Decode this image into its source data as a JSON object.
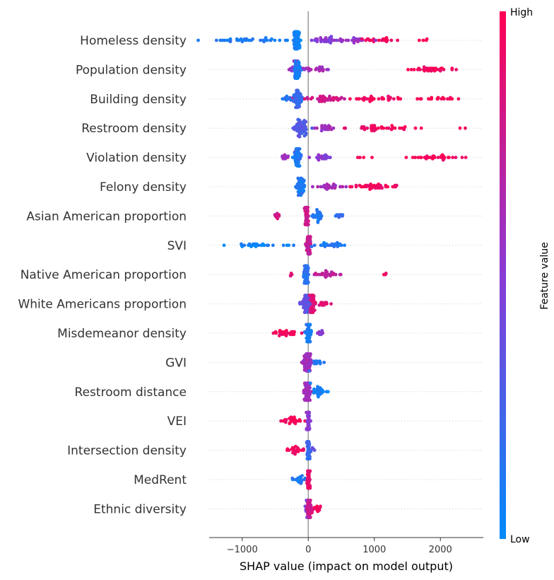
{
  "chart_data": {
    "type": "scatter",
    "subtype": "shap-beeswarm",
    "xlabel": "SHAP value (impact on model output)",
    "xticks": [
      -1000,
      0,
      1000,
      2000
    ],
    "xtick_labels": [
      "−1000",
      "0",
      "1000",
      "2000"
    ],
    "xlim": [
      -1500,
      2650
    ],
    "colorbar": {
      "label": "Feature value",
      "high_label": "High",
      "low_label": "Low",
      "low_color": "#008bfb",
      "high_color": "#ff0052"
    },
    "zero_line": true,
    "grid": false,
    "features": [
      {
        "name": "Homeless density",
        "clusters": [
          {
            "center": -170,
            "spread": 60,
            "n": 70,
            "v": 0.05
          },
          {
            "center": -950,
            "spread": 900,
            "n": 38,
            "v": 0.1
          },
          {
            "center": 230,
            "spread": 230,
            "n": 30,
            "v": 0.5
          },
          {
            "center": 700,
            "spread": 280,
            "n": 22,
            "v": 0.55
          },
          {
            "center": 1100,
            "spread": 370,
            "n": 20,
            "v": 0.96
          },
          {
            "center": 1700,
            "spread": 190,
            "n": 4,
            "v": 1.0
          }
        ]
      },
      {
        "name": "Population density",
        "clusters": [
          {
            "center": -170,
            "spread": 60,
            "n": 70,
            "v": 0.08
          },
          {
            "center": -280,
            "spread": 130,
            "n": 8,
            "v": 0.55
          },
          {
            "center": 160,
            "spread": 220,
            "n": 22,
            "v": 0.6
          },
          {
            "center": 1900,
            "spread": 370,
            "n": 35,
            "v": 0.96
          }
        ]
      },
      {
        "name": "Building density",
        "clusters": [
          {
            "center": -150,
            "spread": 80,
            "n": 50,
            "v": 0.2
          },
          {
            "center": -310,
            "spread": 80,
            "n": 10,
            "v": 0.15
          },
          {
            "center": 250,
            "spread": 320,
            "n": 40,
            "v": 0.8
          },
          {
            "center": 1000,
            "spread": 450,
            "n": 30,
            "v": 0.95
          },
          {
            "center": 1950,
            "spread": 420,
            "n": 18,
            "v": 1.0
          }
        ]
      },
      {
        "name": "Restroom density",
        "clusters": [
          {
            "center": -120,
            "spread": 120,
            "n": 60,
            "v": 0.3
          },
          {
            "center": 250,
            "spread": 180,
            "n": 22,
            "v": 0.6
          },
          {
            "center": 1050,
            "spread": 600,
            "n": 40,
            "v": 0.95
          },
          {
            "center": 2350,
            "spread": 100,
            "n": 2,
            "v": 1.0
          }
        ]
      },
      {
        "name": "Violation density",
        "clusters": [
          {
            "center": -160,
            "spread": 60,
            "n": 60,
            "v": 0.1
          },
          {
            "center": -330,
            "spread": 130,
            "n": 12,
            "v": 0.6
          },
          {
            "center": 200,
            "spread": 200,
            "n": 20,
            "v": 0.5
          },
          {
            "center": 750,
            "spread": 180,
            "n": 4,
            "v": 1.0
          },
          {
            "center": 1900,
            "spread": 400,
            "n": 32,
            "v": 0.96
          }
        ]
      },
      {
        "name": "Felony density",
        "clusters": [
          {
            "center": -130,
            "spread": 80,
            "n": 50,
            "v": 0.1
          },
          {
            "center": 300,
            "spread": 250,
            "n": 25,
            "v": 0.6
          },
          {
            "center": 1000,
            "spread": 450,
            "n": 40,
            "v": 0.95
          }
        ]
      },
      {
        "name": "Asian American proportion",
        "clusters": [
          {
            "center": -20,
            "spread": 40,
            "n": 60,
            "v": 0.8
          },
          {
            "center": -490,
            "spread": 60,
            "n": 10,
            "v": 0.8
          },
          {
            "center": 130,
            "spread": 100,
            "n": 25,
            "v": 0.1
          },
          {
            "center": 480,
            "spread": 80,
            "n": 10,
            "v": 0.2
          }
        ]
      },
      {
        "name": "SVI",
        "clusters": [
          {
            "center": 10,
            "spread": 40,
            "n": 60,
            "v": 0.75
          },
          {
            "center": -800,
            "spread": 550,
            "n": 28,
            "v": 0.05
          },
          {
            "center": 300,
            "spread": 300,
            "n": 25,
            "v": 0.1
          }
        ]
      },
      {
        "name": "Native American proportion",
        "clusters": [
          {
            "center": -30,
            "spread": 40,
            "n": 60,
            "v": 0.15
          },
          {
            "center": -250,
            "spread": 60,
            "n": 4,
            "v": 0.9
          },
          {
            "center": 280,
            "spread": 220,
            "n": 26,
            "v": 0.7
          },
          {
            "center": 1150,
            "spread": 60,
            "n": 3,
            "v": 0.95
          }
        ]
      },
      {
        "name": "White Americans proportion",
        "clusters": [
          {
            "center": -30,
            "spread": 90,
            "n": 60,
            "v": 0.35
          },
          {
            "center": 60,
            "spread": 50,
            "n": 40,
            "v": 0.85
          },
          {
            "center": 250,
            "spread": 120,
            "n": 12,
            "v": 0.9
          }
        ]
      },
      {
        "name": "Misdemeanor density",
        "clusters": [
          {
            "center": 0,
            "spread": 40,
            "n": 60,
            "v": 0.1
          },
          {
            "center": -300,
            "spread": 250,
            "n": 30,
            "v": 0.95
          },
          {
            "center": 180,
            "spread": 80,
            "n": 8,
            "v": 0.5
          }
        ]
      },
      {
        "name": "GVI",
        "clusters": [
          {
            "center": -10,
            "spread": 70,
            "n": 70,
            "v": 0.6
          },
          {
            "center": 150,
            "spread": 80,
            "n": 12,
            "v": 0.15
          }
        ]
      },
      {
        "name": "Restroom distance",
        "clusters": [
          {
            "center": -20,
            "spread": 60,
            "n": 60,
            "v": 0.6
          },
          {
            "center": 160,
            "spread": 130,
            "n": 30,
            "v": 0.05
          }
        ]
      },
      {
        "name": "VEI",
        "clusters": [
          {
            "center": 0,
            "spread": 25,
            "n": 50,
            "v": 0.5
          },
          {
            "center": -230,
            "spread": 180,
            "n": 25,
            "v": 0.97
          }
        ]
      },
      {
        "name": "Intersection density",
        "clusters": [
          {
            "center": 0,
            "spread": 30,
            "n": 50,
            "v": 0.2
          },
          {
            "center": -170,
            "spread": 130,
            "n": 25,
            "v": 0.95
          },
          {
            "center": 60,
            "spread": 40,
            "n": 5,
            "v": 0.3
          }
        ]
      },
      {
        "name": "MedRent",
        "clusters": [
          {
            "center": 10,
            "spread": 25,
            "n": 60,
            "v": 0.9
          },
          {
            "center": -130,
            "spread": 110,
            "n": 20,
            "v": 0.1
          }
        ]
      },
      {
        "name": "Ethnic diversity",
        "clusters": [
          {
            "center": 20,
            "spread": 40,
            "n": 55,
            "v": 0.8
          },
          {
            "center": 150,
            "spread": 40,
            "n": 12,
            "v": 0.97
          },
          {
            "center": -30,
            "spread": 25,
            "n": 10,
            "v": 0.5
          }
        ]
      }
    ]
  }
}
